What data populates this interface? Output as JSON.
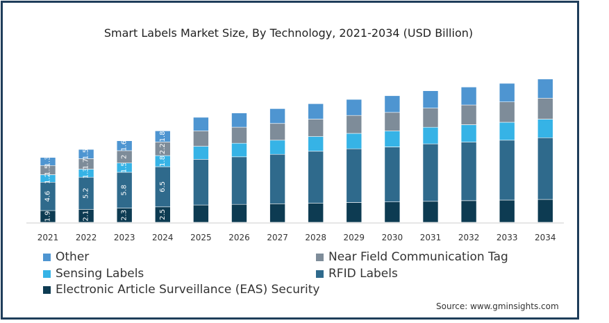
{
  "chart_data": {
    "type": "bar",
    "stacked": true,
    "title": "Smart Labels Market Size, By Technology, 2021-2034 (USD Billion)",
    "xlabel": "",
    "ylabel": "",
    "categories": [
      "2021",
      "2022",
      "2023",
      "2024",
      "2025",
      "2026",
      "2027",
      "2028",
      "2029",
      "2030",
      "2031",
      "2032",
      "2033",
      "2034"
    ],
    "series": [
      {
        "name": "Electronic Article Surveillance (EAS) Security",
        "color": "#0d3b52",
        "values": [
          1.9,
          2.1,
          2.3,
          2.5,
          2.8,
          2.9,
          3.0,
          3.1,
          3.2,
          3.3,
          3.4,
          3.5,
          3.6,
          3.7
        ],
        "labels": [
          "1.9",
          "2.1",
          "2.3",
          "2.5",
          "",
          "",
          "",
          "",
          "",
          "",
          "",
          "",
          "",
          ""
        ]
      },
      {
        "name": "RFID Labels",
        "color": "#2f6a8c",
        "values": [
          4.6,
          5.2,
          5.8,
          6.5,
          7.4,
          7.7,
          8.0,
          8.4,
          8.7,
          8.9,
          9.3,
          9.5,
          9.7,
          10.0
        ],
        "labels": [
          "4.6",
          "5.2",
          "5.8",
          "6.5",
          "",
          "",
          "",
          "",
          "",
          "",
          "",
          "",
          "",
          ""
        ]
      },
      {
        "name": "Sensing Labels",
        "color": "#36b3e6",
        "values": [
          1.2,
          1.3,
          1.5,
          1.8,
          2.1,
          2.2,
          2.3,
          2.4,
          2.5,
          2.6,
          2.7,
          2.8,
          2.9,
          3.0
        ],
        "labels": [
          "1.2",
          "1.3",
          "1.5",
          "1.8",
          "",
          "",
          "",
          "",
          "",
          "",
          "",
          "",
          "",
          ""
        ]
      },
      {
        "name": "Near Field Communication Tag",
        "color": "#7e8c99",
        "values": [
          1.5,
          1.7,
          2.0,
          2.2,
          2.5,
          2.6,
          2.7,
          2.8,
          2.9,
          3.0,
          3.1,
          3.2,
          3.3,
          3.4
        ],
        "labels": [
          "1.5",
          "1.7",
          "2",
          "2.2",
          "",
          "",
          "",
          "",
          "",
          "",
          "",
          "",
          "",
          ""
        ]
      },
      {
        "name": "Other",
        "color": "#4e95d1",
        "values": [
          1.3,
          1.5,
          1.6,
          1.8,
          2.2,
          2.3,
          2.4,
          2.5,
          2.6,
          2.7,
          2.8,
          2.9,
          3.0,
          3.1
        ],
        "labels": [
          "1.3",
          "1.5",
          "1.6",
          "1.8",
          "",
          "",
          "",
          "",
          "",
          "",
          "",
          "",
          "",
          ""
        ]
      }
    ],
    "ylim": [
      0,
      27
    ],
    "grid": false,
    "legend_position": "bottom"
  },
  "source": "Source: www.gminsights.com"
}
